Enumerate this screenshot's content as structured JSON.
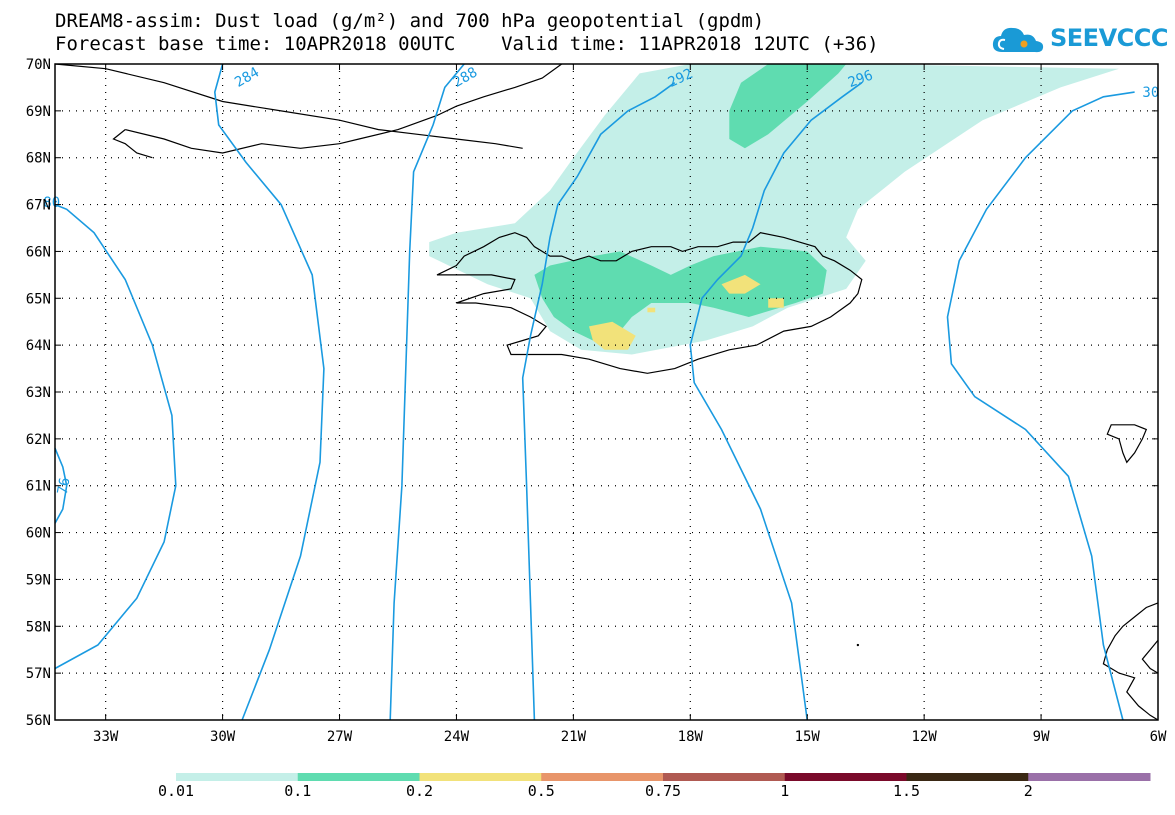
{
  "title": {
    "line1": "DREAM8-assim: Dust load (g/m²) and 700 hPa geopotential (gpdm)",
    "line2": "Forecast base time: 10APR2018 00UTC    Valid time: 11APR2018 12UTC (+36)"
  },
  "logo": {
    "text": "SEEVCCC",
    "color": "#1a9ad6"
  },
  "axes": {
    "lat_labels": [
      "70N",
      "69N",
      "68N",
      "67N",
      "66N",
      "65N",
      "64N",
      "63N",
      "62N",
      "61N",
      "60N",
      "59N",
      "58N",
      "57N",
      "56N"
    ],
    "lon_labels": [
      "33W",
      "30W",
      "27W",
      "24W",
      "21W",
      "18W",
      "15W",
      "12W",
      "9W",
      "6W"
    ],
    "lat_range": [
      56,
      70
    ],
    "lon_range": [
      -34.3,
      -6
    ]
  },
  "contours": {
    "color": "#1a9ae0",
    "labels": [
      "284",
      "288",
      "292",
      "296",
      "30",
      "80",
      "76"
    ]
  },
  "colorbar": {
    "labels": [
      "0.01",
      "0.1",
      "0.2",
      "0.5",
      "0.75",
      "1",
      "1.5",
      "2"
    ],
    "colors": [
      "#c4efe8",
      "#5fdcb0",
      "#f2e27a",
      "#e8956a",
      "#b05a52",
      "#7a0a2a",
      "#3a2814",
      "#9a70a8"
    ]
  },
  "dust_colors": {
    "level1": "#c4efe8",
    "level2": "#5fdcb0",
    "level3": "#f2e27a"
  }
}
